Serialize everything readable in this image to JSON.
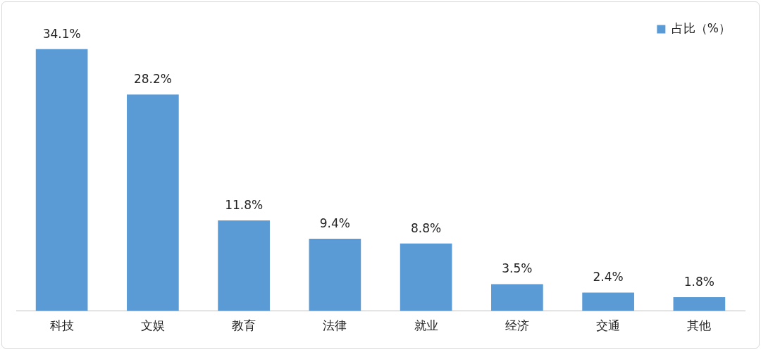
{
  "chart_data": {
    "type": "bar",
    "categories": [
      "科技",
      "文娱",
      "教育",
      "法律",
      "就业",
      "经济",
      "交通",
      "其他"
    ],
    "series": [
      {
        "name": "占比（%）",
        "color": "#5b9bd5",
        "values": [
          34.1,
          28.2,
          11.8,
          9.4,
          8.8,
          3.5,
          2.4,
          1.8
        ],
        "value_labels": [
          "34.1%",
          "28.2%",
          "11.8%",
          "9.4%",
          "8.8%",
          "3.5%",
          "2.4%",
          "1.8%"
        ]
      }
    ],
    "grid": false,
    "legend": "top right",
    "tick_labels": "x"
  }
}
